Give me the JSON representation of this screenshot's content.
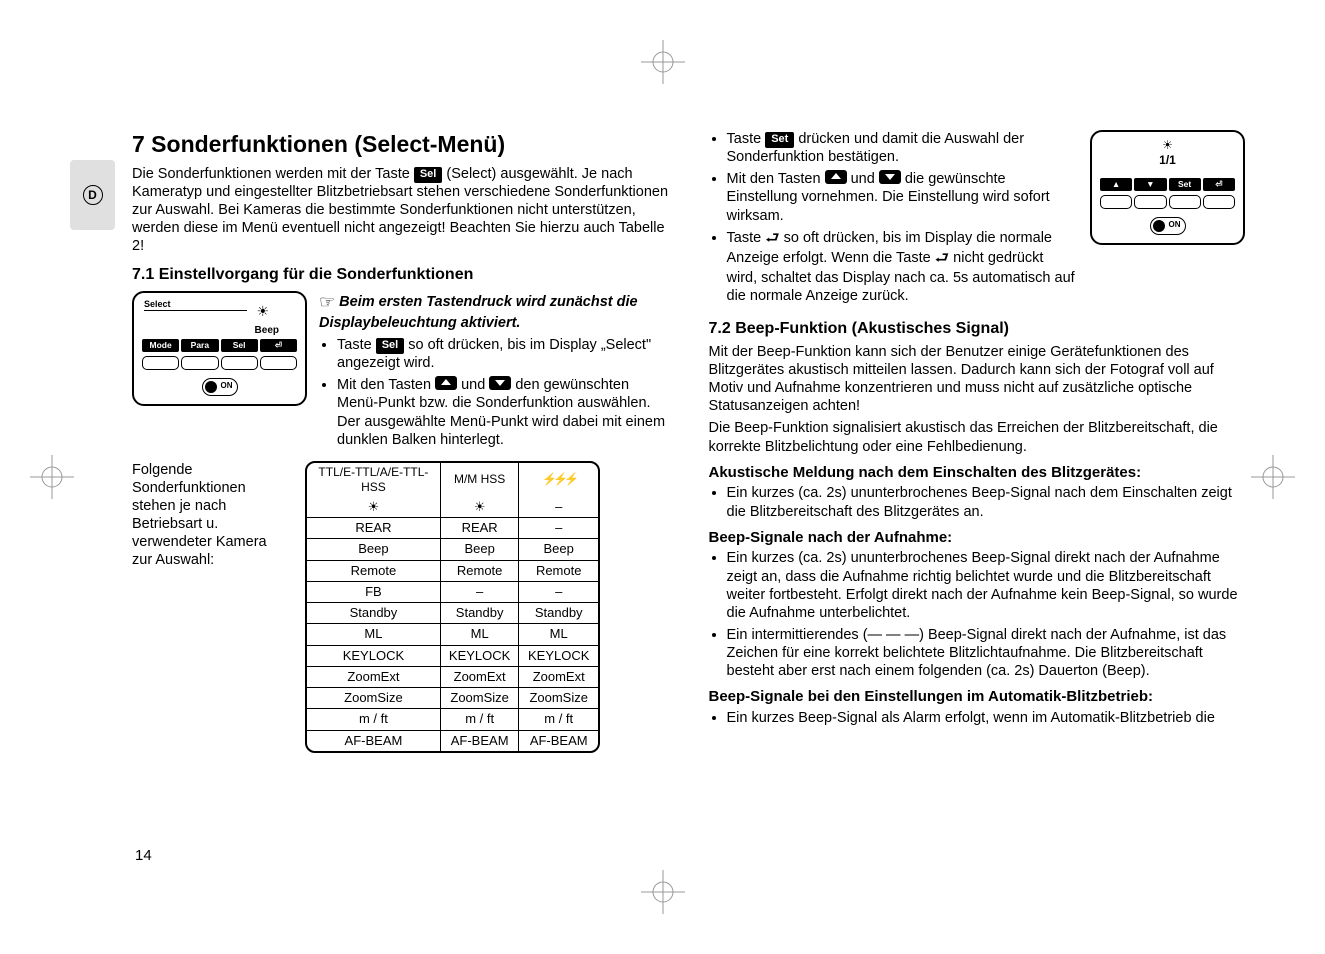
{
  "lang_badge": "D",
  "page_number": "14",
  "h1": "7 Sonderfunktionen (Select-Menü)",
  "intro": "Die Sonderfunktionen werden mit der Taste ",
  "intro_btn": "Sel",
  "intro_after": " (Select) ausgewählt. Je nach Kameratyp und eingestellter Blitzbetriebsart stehen verschiedene Sonderfunktionen zur Auswahl. Bei Kameras die bestimmte Sonderfunktionen nicht unterstützen, werden diese im Menü eventuell nicht angezeigt! Beachten Sie hierzu auch Tabelle 2!",
  "h2_71": "7.1 Einstellvorgang für die Sonderfunktionen",
  "note71": "Beim ersten Tastendruck wird zunächst die Displaybeleuchtung aktiviert.",
  "b71_1a": "Taste ",
  "b71_1_btn": "Sel",
  "b71_1b": " so oft drücken, bis im Display „Select\" angezeigt wird.",
  "b71_2a": "Mit den Tasten ",
  "b71_2b": " und ",
  "b71_2c": " den gewünschten Menü-Punkt bzw. die Sonderfunktion auswählen. Der ausgewählte Menü-Punkt wird dabei mit einem dunklen Balken hinterlegt.",
  "device1": {
    "select_label": "Select",
    "beep_label": "Beep",
    "buttons": [
      "Mode",
      "Para",
      "Sel",
      "⏎"
    ],
    "on_label": "ON"
  },
  "prose_table": "Folgende Sonderfunktionen stehen je nach Betriebsart u. verwendeter Kamera zur Auswahl:",
  "table": {
    "headers": [
      "TTL/E-TTL/A/E-TTL-HSS",
      "M/M HSS",
      "⚡⚡⚡"
    ],
    "rows": [
      [
        "☀",
        "☀",
        "–"
      ],
      [
        "REAR",
        "REAR",
        "–"
      ],
      [
        "Beep",
        "Beep",
        "Beep"
      ],
      [
        "Remote",
        "Remote",
        "Remote"
      ],
      [
        "FB",
        "–",
        "–"
      ],
      [
        "Standby",
        "Standby",
        "Standby"
      ],
      [
        "ML",
        "ML",
        "ML"
      ],
      [
        "KEYLOCK",
        "KEYLOCK",
        "KEYLOCK"
      ],
      [
        "ZoomExt",
        "ZoomExt",
        "ZoomExt"
      ],
      [
        "ZoomSize",
        "ZoomSize",
        "ZoomSize"
      ],
      [
        "m / ft",
        "m / ft",
        "m / ft"
      ],
      [
        "AF-BEAM",
        "AF-BEAM",
        "AF-BEAM"
      ]
    ]
  },
  "right": {
    "b1a": "Taste ",
    "b1_btn": "Set",
    "b1b": " drücken und damit die Auswahl der Sonderfunktion bestätigen.",
    "b2a": "Mit den Tasten ",
    "b2b": " und ",
    "b2c": " die gewünschte Einstellung vornehmen. Die Einstellung wird sofort wirksam.",
    "b3a": "Taste ",
    "b3b": " so oft drücken, bis im Display die normale Anzeige erfolgt. Wenn die Taste ",
    "b3c": " nicht gedrückt wird, schaltet das Display nach ca. 5s automatisch auf die normale Anzeige zurück.",
    "device2_label": "1/1",
    "device2_set": "Set",
    "device2_on": "ON"
  },
  "h2_72": "7.2 Beep-Funktion (Akustisches Signal)",
  "p72_1": "Mit der Beep-Funktion kann sich der Benutzer einige Gerätefunktionen des Blitzgerätes akustisch mitteilen lassen. Dadurch kann sich der Fotograf voll auf Motiv und Aufnahme konzentrieren und muss nicht auf zusätzliche optische Statusanzeigen achten!",
  "p72_2": "Die Beep-Funktion signalisiert akustisch das Erreichen der Blitzbereitschaft, die korrekte Blitzbelichtung oder eine Fehlbedienung.",
  "h3_a": "Akustische Meldung nach dem Einschalten des Blitzgerätes:",
  "li_a1": "Ein kurzes (ca. 2s) ununterbrochenes Beep-Signal nach dem Einschalten zeigt die Blitzbereitschaft des Blitzgerätes an.",
  "h3_b": "Beep-Signale nach der Aufnahme:",
  "li_b1": "Ein kurzes (ca. 2s) ununterbrochenes Beep-Signal direkt nach der Aufnahme zeigt an, dass die Aufnahme richtig belichtet wurde und die Blitzbereitschaft weiter fortbesteht. Erfolgt direkt nach der Aufnahme kein Beep-Signal, so wurde die Aufnahme unterbelichtet.",
  "li_b2": "Ein intermittierendes (— — —) Beep-Signal direkt nach der Aufnahme, ist das Zeichen für eine korrekt belichtete Blitzlichtaufnahme. Die Blitzbereitschaft besteht aber erst nach einem folgenden (ca. 2s) Dauerton (Beep).",
  "h3_c": "Beep-Signale bei den Einstellungen im Automatik-Blitzbetrieb:",
  "li_c1": "Ein kurzes Beep-Signal als Alarm erfolgt, wenn im Automatik-Blitzbetrieb die"
}
